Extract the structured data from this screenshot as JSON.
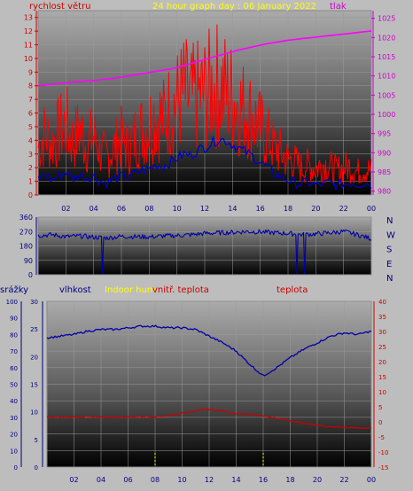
{
  "chart_data": [
    {
      "type": "line",
      "title": "24 hour graph day : 06 January 2022",
      "left_axis_label": "rychlost větru",
      "right_axis_label": "tlak",
      "left_ticks": [
        "0",
        "1",
        "2",
        "3",
        "4",
        "5",
        "6",
        "7",
        "8",
        "9",
        "10",
        "11",
        "12",
        "13"
      ],
      "right_ticks": [
        "980",
        "985",
        "990",
        "995",
        "1000",
        "1005",
        "1010",
        "1015",
        "1020",
        "1025"
      ],
      "x_ticks": [
        "02",
        "04",
        "06",
        "08",
        "10",
        "12",
        "14",
        "16",
        "18",
        "20",
        "22",
        "00"
      ],
      "ylim_left": [
        0,
        13.5
      ],
      "ylim_right": [
        979,
        1027
      ],
      "x_hours": [
        0,
        0.5,
        1,
        1.5,
        2,
        2.5,
        3,
        3.5,
        4,
        4.5,
        5,
        5.5,
        6,
        6.5,
        7,
        7.5,
        8,
        8.5,
        9,
        9.5,
        10,
        10.5,
        11,
        11.5,
        12,
        12.5,
        13,
        13.5,
        14,
        14.5,
        15,
        15.5,
        16,
        16.5,
        17,
        17.5,
        18,
        18.5,
        19,
        19.5,
        20,
        20.5,
        21,
        21.5,
        22,
        22.5,
        23,
        23.5,
        24
      ],
      "series": [
        {
          "color": "#ff0000",
          "values": [
            3.5,
            4.5,
            3.8,
            4.6,
            5.2,
            3.9,
            4.8,
            3.6,
            4.4,
            3.2,
            2.8,
            3.5,
            4.1,
            3.4,
            4.3,
            4.8,
            5.2,
            6.0,
            5.5,
            6.3,
            6.8,
            7.5,
            6.9,
            7.2,
            7.4,
            7.8,
            8.1,
            7.6,
            7.1,
            6.5,
            6.2,
            5.6,
            4.9,
            4.2,
            3.6,
            3.1,
            2.6,
            2.4,
            2.0,
            2.2,
            1.9,
            2.3,
            2.1,
            1.8,
            2.0,
            2.1,
            1.7,
            1.9,
            1.8
          ]
        },
        {
          "color": "#0000cc",
          "values": [
            1.2,
            1.5,
            1.1,
            1.4,
            1.7,
            1.2,
            1.5,
            1.3,
            1.4,
            1.0,
            0.9,
            1.2,
            1.4,
            1.3,
            1.6,
            1.8,
            1.9,
            2.2,
            2.1,
            2.4,
            2.7,
            3.0,
            2.9,
            3.3,
            3.5,
            3.8,
            4.1,
            4.0,
            3.7,
            3.4,
            3.1,
            2.8,
            2.4,
            2.0,
            1.6,
            1.3,
            1.1,
            0.9,
            0.8,
            0.9,
            0.7,
            0.8,
            0.9,
            0.7,
            0.8,
            0.9,
            0.8,
            0.9,
            0.8
          ]
        },
        {
          "color": "#ff00ff",
          "axis": "right",
          "values": [
            1007.4,
            1007.6,
            1007.8,
            1008.0,
            1008.2,
            1008.4,
            1008.5,
            1008.7,
            1008.8,
            1009.0,
            1009.2,
            1009.4,
            1009.7,
            1010.0,
            1010.3,
            1010.6,
            1010.9,
            1011.2,
            1011.5,
            1011.8,
            1012.2,
            1012.7,
            1013.2,
            1013.7,
            1014.3,
            1014.8,
            1015.3,
            1015.8,
            1016.3,
            1016.8,
            1017.2,
            1017.6,
            1018.0,
            1018.4,
            1018.7,
            1019.0,
            1019.3,
            1019.5,
            1019.7,
            1019.9,
            1020.1,
            1020.3,
            1020.5,
            1020.7,
            1020.9,
            1021.1,
            1021.3,
            1021.5,
            1021.7
          ]
        }
      ]
    },
    {
      "type": "line",
      "left_ticks": [
        "360",
        "270",
        "180",
        "90",
        "0"
      ],
      "right_labels": [
        "N",
        "W",
        "S",
        "E",
        "N"
      ],
      "ylim": [
        0,
        360
      ],
      "x_hours": [
        0,
        1,
        2,
        3,
        4,
        5,
        6,
        7,
        8,
        9,
        10,
        11,
        12,
        13,
        14,
        15,
        16,
        17,
        18,
        19,
        20,
        21,
        22,
        23,
        24
      ],
      "series": [
        {
          "color": "#0000aa",
          "values": [
            245,
            250,
            238,
            242,
            235,
            230,
            240,
            238,
            236,
            242,
            245,
            250,
            258,
            262,
            265,
            270,
            268,
            262,
            258,
            250,
            255,
            262,
            270,
            250,
            225
          ]
        }
      ]
    },
    {
      "type": "line",
      "labels": {
        "srazky": "srážky",
        "vlhkost": "vlhkost",
        "indoor_hum": "Indoor hum",
        "vnitr_teplota": "vnitř. teplota",
        "teplota": "teplota"
      },
      "left_ticks_1": [
        "0",
        "10",
        "20",
        "30",
        "40",
        "50",
        "60",
        "70",
        "80",
        "90",
        "100"
      ],
      "left_ticks_2": [
        "0",
        "5",
        "10",
        "15",
        "20",
        "25",
        "30"
      ],
      "right_ticks": [
        "40",
        "35",
        "30",
        "25",
        "20",
        "15",
        "10",
        "5",
        "0",
        "-5",
        "-10",
        "-15"
      ],
      "x_ticks": [
        "02",
        "04",
        "06",
        "08",
        "10",
        "12",
        "14",
        "16",
        "18",
        "20",
        "22",
        "00"
      ],
      "ylim_humidity": [
        0,
        100
      ],
      "ylim_temperature": [
        -15,
        40
      ],
      "x_hours": [
        0,
        1,
        2,
        3,
        4,
        5,
        6,
        7,
        8,
        9,
        10,
        11,
        12,
        13,
        14,
        15,
        16,
        17,
        18,
        19,
        20,
        21,
        22,
        23,
        24
      ],
      "series": [
        {
          "color": "#0000aa",
          "values": [
            78,
            79,
            80,
            82,
            83,
            83,
            84,
            85,
            85,
            84,
            84,
            83,
            79,
            75,
            70,
            62,
            55,
            60,
            66,
            71,
            75,
            79,
            81,
            80,
            82
          ]
        },
        {
          "color": "#cc0000",
          "values": [
            1.5,
            1.6,
            1.6,
            1.7,
            1.5,
            1.5,
            1.6,
            1.8,
            1.7,
            2.0,
            2.9,
            3.8,
            4.2,
            3.6,
            2.8,
            2.6,
            2.0,
            1.1,
            0.5,
            -0.5,
            -1.1,
            -1.6,
            -1.8,
            -2.0,
            -2.1
          ]
        }
      ]
    }
  ]
}
